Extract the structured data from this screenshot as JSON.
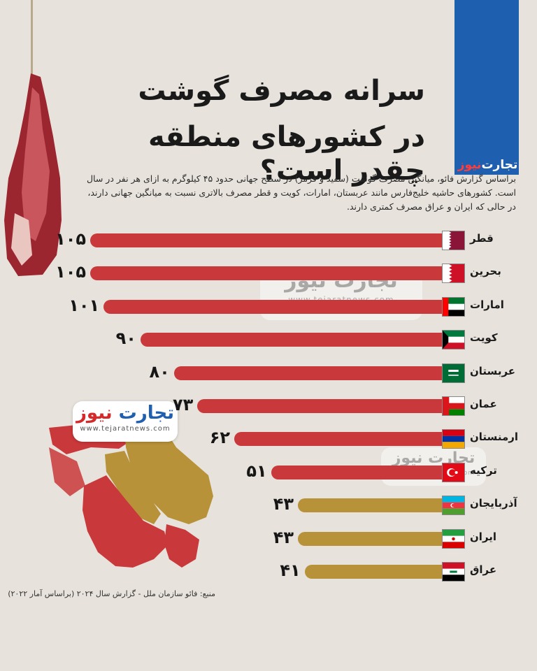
{
  "brand": {
    "part1": "تجارت",
    "part2": "نیوز",
    "url": "www.tejaratnews.com"
  },
  "title": {
    "line1": "سرانه مصرف گوشت",
    "line2": "در کشورهای منطقه چقدر است؟"
  },
  "intro": "براساس گزارش فائو، میانگین مصرف گوشت (سفید و قرمز) در سطح جهانی حدود ۴۵ کیلوگرم به ازای هر نفر در سال است. کشورهای حاشیه خلیج‌فارس مانند عربستان، امارات، کویت و قطر مصرف بالاتری نسبت به میانگین جهانی دارند، در حالی که ایران و عراق مصرف کمتری دارند.",
  "source": "منبع: فائو سازمان ملل - گزارش سال ۲۰۲۴ (براساس آمار ۲۰۲۲)",
  "colors": {
    "high": "#c9383a",
    "low": "#b89239",
    "brand_blue": "#1f5fb0"
  },
  "chart_data": {
    "type": "bar",
    "orientation": "horizontal",
    "categories": [
      "قطر",
      "بحرین",
      "امارات",
      "کویت",
      "عربستان",
      "عمان",
      "ارمنستان",
      "ترکیه",
      "آذربایجان",
      "ایران",
      "عراق"
    ],
    "values": [
      105,
      105,
      101,
      90,
      80,
      73,
      62,
      51,
      43,
      43,
      41
    ],
    "value_labels": [
      "۱۰۵",
      "۱۰۵",
      "۱۰۱",
      "۹۰",
      "۸۰",
      "۷۳",
      "۶۲",
      "۵۱",
      "۴۳",
      "۴۳",
      "۴۱"
    ],
    "bar_colors": [
      "high",
      "high",
      "high",
      "high",
      "high",
      "high",
      "high",
      "high",
      "low",
      "low",
      "low"
    ],
    "flags": [
      "qatar-flag",
      "bahrain-flag",
      "uae-flag",
      "kuwait-flag",
      "saudi-flag",
      "oman-flag",
      "armenia-flag",
      "turkey-flag",
      "azerbaijan-flag",
      "iran-flag",
      "iraq-flag"
    ]
  }
}
